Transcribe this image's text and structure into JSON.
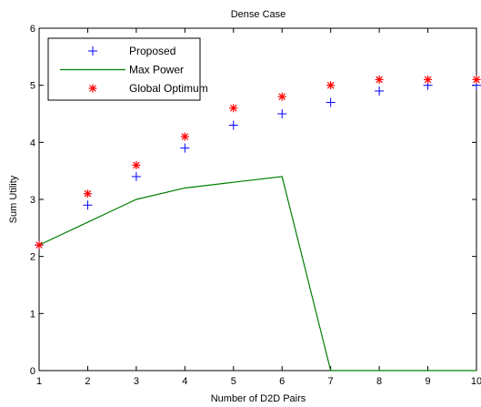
{
  "chart_data": {
    "type": "line",
    "title": "Dense Case",
    "xlabel": "Number of D2D Pairs",
    "ylabel": "Sum Utility",
    "xlim": [
      1,
      10
    ],
    "ylim": [
      0,
      6
    ],
    "x_ticks": [
      "1",
      "2",
      "3",
      "4",
      "5",
      "6",
      "7",
      "8",
      "9",
      "10"
    ],
    "y_ticks": [
      "0",
      "1",
      "2",
      "3",
      "4",
      "5",
      "6"
    ],
    "grid": false,
    "legend_position": "top-left",
    "series": [
      {
        "name": "Proposed",
        "marker": "plus",
        "line": "none",
        "color": "#0000ff",
        "x": [
          1,
          2,
          3,
          4,
          5,
          6,
          7,
          8,
          9,
          10
        ],
        "y": [
          2.2,
          2.9,
          3.4,
          3.9,
          4.3,
          4.5,
          4.7,
          4.9,
          5.0,
          5.0
        ]
      },
      {
        "name": "Max Power",
        "marker": "none",
        "line": "solid",
        "color": "#008000",
        "x": [
          1,
          2,
          3,
          4,
          5,
          6,
          7,
          8,
          9,
          10
        ],
        "y": [
          2.2,
          2.6,
          3.0,
          3.2,
          3.3,
          3.4,
          0,
          0,
          0,
          0
        ]
      },
      {
        "name": "Global Optimum",
        "marker": "asterisk",
        "line": "none",
        "color": "#ff0000",
        "x": [
          1,
          2,
          3,
          4,
          5,
          6,
          7,
          8,
          9,
          10
        ],
        "y": [
          2.2,
          3.1,
          3.6,
          4.1,
          4.6,
          4.8,
          5.0,
          5.1,
          5.1,
          5.1
        ]
      }
    ]
  }
}
